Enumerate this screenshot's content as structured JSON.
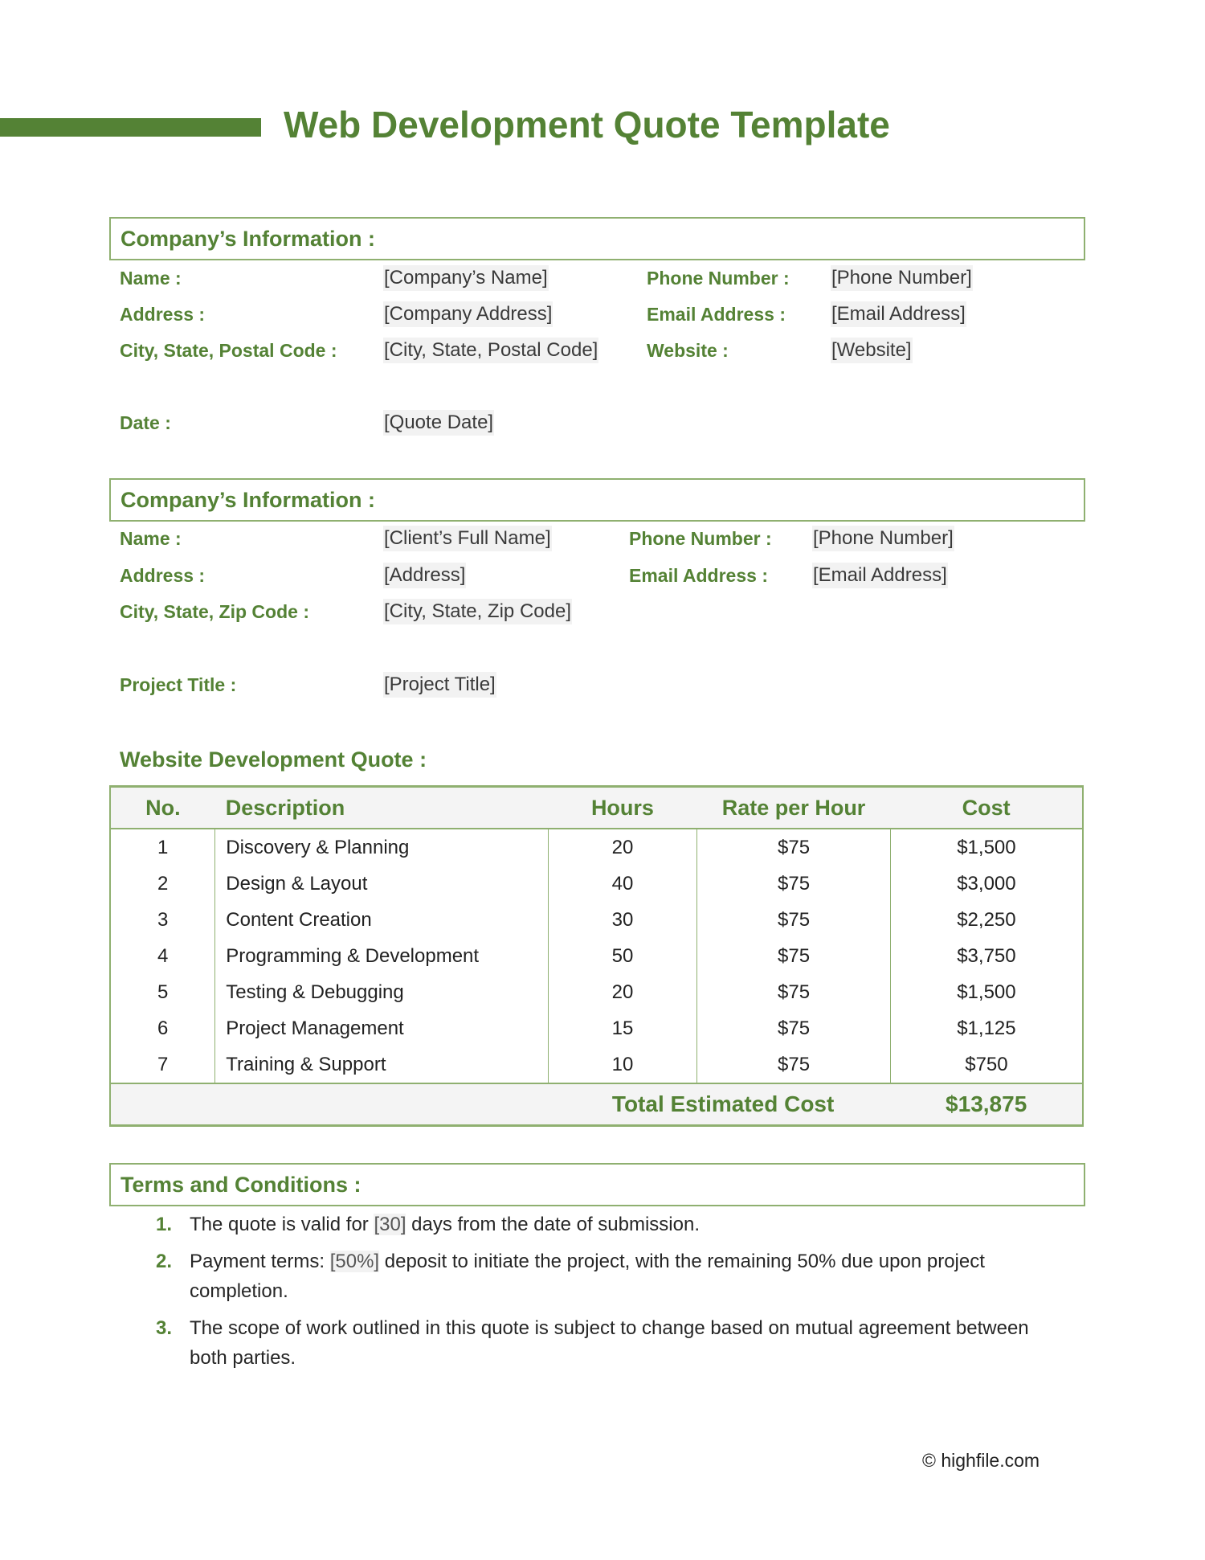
{
  "title": "Web Development Quote Template",
  "accent_color": "#548235",
  "company": {
    "heading": "Company’s Information :",
    "rows": [
      {
        "label": "Name :",
        "value": "[Company’s Name]",
        "label2": "Phone Number :",
        "value2": "[Phone Number]"
      },
      {
        "label": "Address :",
        "value": "[Company Address]",
        "label2": "Email Address :",
        "value2": "[Email Address]"
      },
      {
        "label": "City, State, Postal Code :",
        "value": "[City, State, Postal Code]",
        "label2": "Website :",
        "value2": "[Website]"
      }
    ],
    "date_label": "Date :",
    "date_value": "[Quote Date]"
  },
  "client": {
    "heading": "Company’s Information :",
    "rows": [
      {
        "label": "Name :",
        "value": "[Client’s Full Name]",
        "label2": "Phone Number :",
        "value2": "[Phone Number]"
      },
      {
        "label": "Address :",
        "value": "[Address]",
        "label2": "Email Address :",
        "value2": "[Email Address]"
      },
      {
        "label": "City, State, Zip Code :",
        "value": "[City, State, Zip Code]"
      }
    ],
    "project_label": "Project Title :",
    "project_value": "[Project Title]"
  },
  "quote": {
    "heading": "Website Development Quote :",
    "columns": [
      "No.",
      "Description",
      "Hours",
      "Rate per Hour",
      "Cost"
    ],
    "rows": [
      [
        "1",
        "Discovery & Planning",
        "20",
        "$75",
        "$1,500"
      ],
      [
        "2",
        "Design & Layout",
        "40",
        "$75",
        "$3,000"
      ],
      [
        "3",
        "Content Creation",
        "30",
        "$75",
        "$2,250"
      ],
      [
        "4",
        "Programming & Development",
        "50",
        "$75",
        "$3,750"
      ],
      [
        "5",
        "Testing & Debugging",
        "20",
        "$75",
        "$1,500"
      ],
      [
        "6",
        "Project Management",
        "15",
        "$75",
        "$1,125"
      ],
      [
        "7",
        "Training & Support",
        "10",
        "$75",
        "$750"
      ]
    ],
    "total_label": "Total Estimated Cost",
    "total_value": "$13,875"
  },
  "terms": {
    "heading": "Terms and Conditions :",
    "items": [
      {
        "num": "1.",
        "pre": "The quote is valid for ",
        "ph": "[30]",
        "post": " days from the date of submission."
      },
      {
        "num": "2.",
        "pre": "Payment terms: ",
        "ph": "[50%]",
        "post": " deposit to initiate the project, with the remaining 50% due upon project completion."
      },
      {
        "num": "3.",
        "pre": "The scope of work outlined in this quote is subject to change based on mutual agreement between both parties.",
        "ph": "",
        "post": ""
      }
    ]
  },
  "footer": "© highfile.com"
}
